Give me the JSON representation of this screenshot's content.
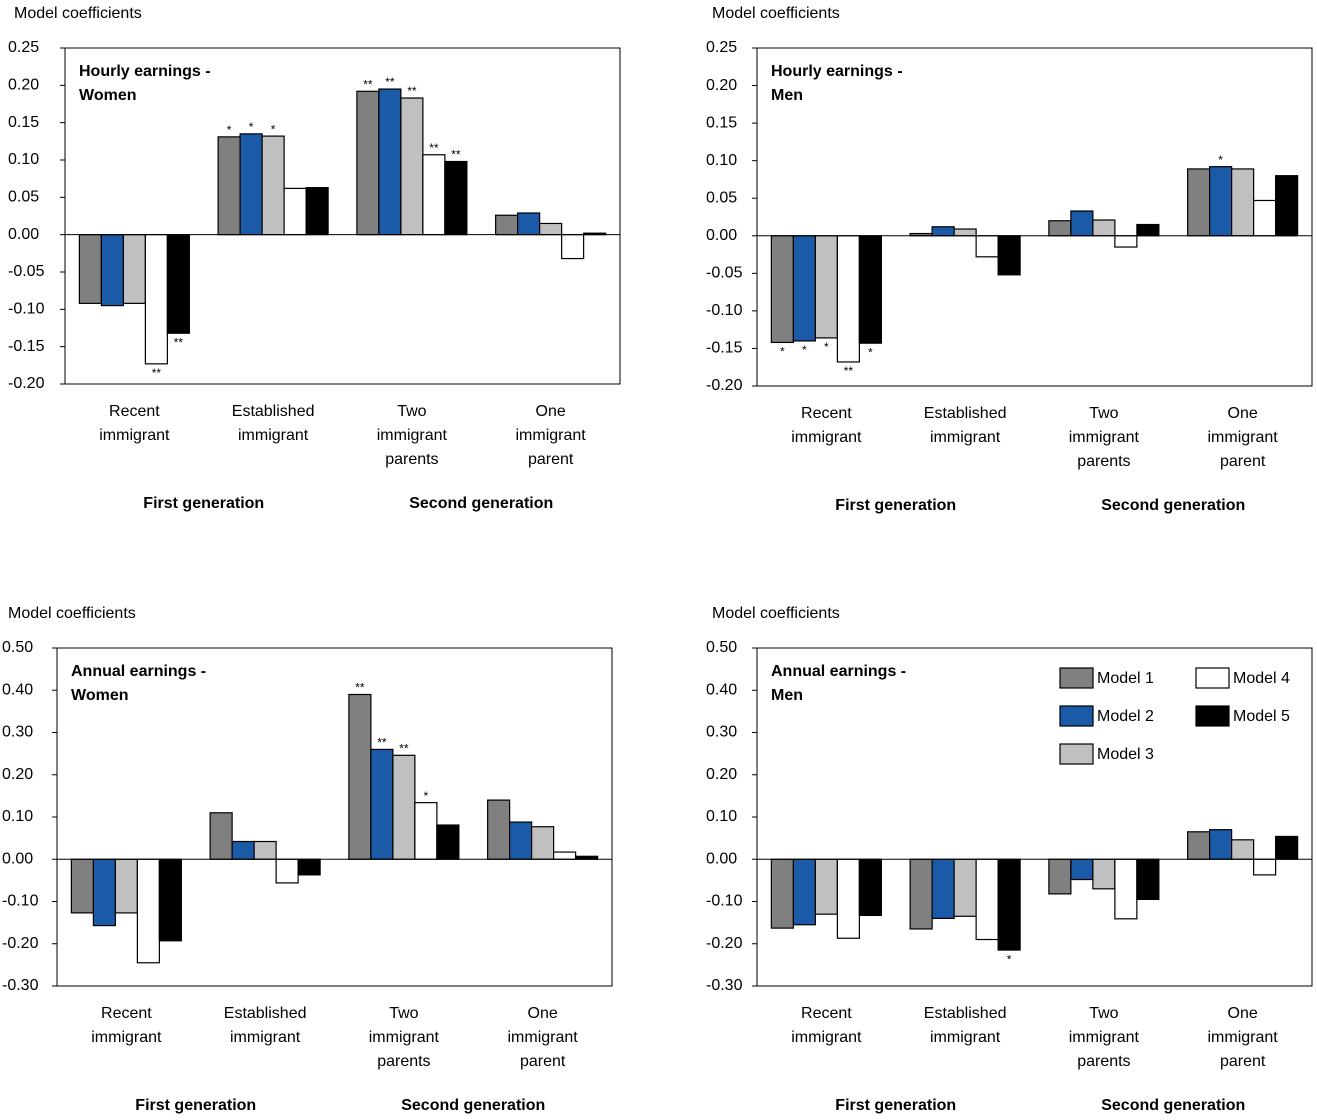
{
  "chart_data": [
    {
      "type": "bar",
      "y_label": "Model coefficients",
      "title": [
        "Hourly earnings -",
        "Women"
      ],
      "categories": [
        [
          "Recent",
          "immigrant"
        ],
        [
          "Established",
          "immigrant"
        ],
        [
          "Two",
          "immigrant",
          "parents"
        ],
        [
          "One",
          "immigrant",
          "parent"
        ]
      ],
      "groups": [
        "First generation",
        "Second generation"
      ],
      "ylim": [
        -0.2,
        0.25
      ],
      "yticks": [
        {
          "value": -0.2,
          "label": "-0.20"
        },
        {
          "value": -0.15,
          "label": "-0.15"
        },
        {
          "value": -0.1,
          "label": "-0.10"
        },
        {
          "value": -0.05,
          "label": "-0.05"
        },
        {
          "value": 0,
          "label": "0.00"
        },
        {
          "value": 0.05,
          "label": "0.05"
        },
        {
          "value": 0.1,
          "label": "0.10"
        },
        {
          "value": 0.15,
          "label": "0.15"
        },
        {
          "value": 0.2,
          "label": "0.20"
        },
        {
          "value": 0.25,
          "label": "0.25"
        }
      ],
      "series": [
        {
          "color": "#808080",
          "values": [
            -0.092,
            0.131,
            0.192,
            0.026
          ],
          "significance": [
            null,
            "*",
            "**",
            null
          ]
        },
        {
          "color": "#1a5aa6",
          "values": [
            -0.095,
            0.135,
            0.195,
            0.029
          ],
          "significance": [
            null,
            "*",
            "**",
            null
          ]
        },
        {
          "color": "#c0c0c0",
          "values": [
            -0.092,
            0.132,
            0.183,
            0.015
          ],
          "significance": [
            null,
            "*",
            "**",
            null
          ]
        },
        {
          "color": "#ffffff",
          "values": [
            -0.173,
            0.062,
            0.107,
            -0.032
          ],
          "significance": [
            "**",
            null,
            "**",
            null
          ]
        },
        {
          "color": "#000000",
          "values": [
            -0.132,
            0.063,
            0.098,
            0.002
          ],
          "significance": [
            "**",
            null,
            "**",
            null
          ]
        }
      ]
    },
    {
      "type": "bar",
      "y_label": "Model coefficients",
      "title": [
        "Hourly earnings -",
        "Men"
      ],
      "categories": [
        [
          "Recent",
          "immigrant"
        ],
        [
          "Established",
          "immigrant"
        ],
        [
          "Two",
          "immigrant",
          "parents"
        ],
        [
          "One",
          "immigrant",
          "parent"
        ]
      ],
      "groups": [
        "First generation",
        "Second generation"
      ],
      "ylim": [
        -0.2,
        0.25
      ],
      "yticks": [
        {
          "value": -0.2,
          "label": "-0.20"
        },
        {
          "value": -0.15,
          "label": "-0.15"
        },
        {
          "value": -0.1,
          "label": "-0.10"
        },
        {
          "value": -0.05,
          "label": "-0.05"
        },
        {
          "value": 0,
          "label": "0.00"
        },
        {
          "value": 0.05,
          "label": "0.05"
        },
        {
          "value": 0.1,
          "label": "0.10"
        },
        {
          "value": 0.15,
          "label": "0.15"
        },
        {
          "value": 0.2,
          "label": "0.20"
        },
        {
          "value": 0.25,
          "label": "0.25"
        }
      ],
      "series": [
        {
          "color": "#808080",
          "values": [
            -0.142,
            0.003,
            0.02,
            0.089
          ],
          "significance": [
            "*",
            null,
            null,
            null
          ]
        },
        {
          "color": "#1a5aa6",
          "values": [
            -0.14,
            0.012,
            0.033,
            0.092
          ],
          "significance": [
            "*",
            null,
            null,
            "*"
          ]
        },
        {
          "color": "#c0c0c0",
          "values": [
            -0.136,
            0.009,
            0.021,
            0.089
          ],
          "significance": [
            "*",
            null,
            null,
            null
          ]
        },
        {
          "color": "#ffffff",
          "values": [
            -0.168,
            -0.028,
            -0.015,
            0.047
          ],
          "significance": [
            "**",
            null,
            null,
            null
          ]
        },
        {
          "color": "#000000",
          "values": [
            -0.143,
            -0.052,
            0.015,
            0.08
          ],
          "significance": [
            "*",
            null,
            null,
            null
          ]
        }
      ]
    },
    {
      "type": "bar",
      "y_label": "Model coefficients",
      "title": [
        "Annual earnings -",
        "Women"
      ],
      "categories": [
        [
          "Recent",
          "immigrant"
        ],
        [
          "Established",
          "immigrant"
        ],
        [
          "Two",
          "immigrant",
          "parents"
        ],
        [
          "One",
          "immigrant",
          "parent"
        ]
      ],
      "groups": [
        "First generation",
        "Second generation"
      ],
      "ylim": [
        -0.3,
        0.5
      ],
      "yticks": [
        {
          "value": -0.3,
          "label": "-0.30"
        },
        {
          "value": -0.2,
          "label": "-0.20"
        },
        {
          "value": -0.1,
          "label": "-0.10"
        },
        {
          "value": 0,
          "label": "0.00"
        },
        {
          "value": 0.1,
          "label": "0.10"
        },
        {
          "value": 0.2,
          "label": "0.20"
        },
        {
          "value": 0.3,
          "label": "0.30"
        },
        {
          "value": 0.4,
          "label": "0.40"
        },
        {
          "value": 0.5,
          "label": "0.50"
        }
      ],
      "series": [
        {
          "color": "#808080",
          "values": [
            -0.127,
            0.11,
            0.39,
            0.14
          ],
          "significance": [
            null,
            null,
            "**",
            null
          ]
        },
        {
          "color": "#1a5aa6",
          "values": [
            -0.157,
            0.042,
            0.26,
            0.088
          ],
          "significance": [
            null,
            null,
            "**",
            null
          ]
        },
        {
          "color": "#c0c0c0",
          "values": [
            -0.127,
            0.042,
            0.246,
            0.077
          ],
          "significance": [
            null,
            null,
            "**",
            null
          ]
        },
        {
          "color": "#ffffff",
          "values": [
            -0.245,
            -0.056,
            0.134,
            0.017
          ],
          "significance": [
            null,
            null,
            "*",
            null
          ]
        },
        {
          "color": "#000000",
          "values": [
            -0.193,
            -0.037,
            0.081,
            0.007
          ],
          "significance": [
            null,
            null,
            null,
            null
          ]
        }
      ]
    },
    {
      "type": "bar",
      "y_label": "Model coefficients",
      "title": [
        "Annual earnings -",
        "Men"
      ],
      "categories": [
        [
          "Recent",
          "immigrant"
        ],
        [
          "Established",
          "immigrant"
        ],
        [
          "Two",
          "immigrant",
          "parents"
        ],
        [
          "One",
          "immigrant",
          "parent"
        ]
      ],
      "groups": [
        "First generation",
        "Second generation"
      ],
      "ylim": [
        -0.3,
        0.5
      ],
      "yticks": [
        {
          "value": -0.3,
          "label": "-0.30"
        },
        {
          "value": -0.2,
          "label": "-0.20"
        },
        {
          "value": -0.1,
          "label": "-0.10"
        },
        {
          "value": 0,
          "label": "0.00"
        },
        {
          "value": 0.1,
          "label": "0.10"
        },
        {
          "value": 0.2,
          "label": "0.20"
        },
        {
          "value": 0.3,
          "label": "0.30"
        },
        {
          "value": 0.4,
          "label": "0.40"
        },
        {
          "value": 0.5,
          "label": "0.50"
        }
      ],
      "legend": "top-right",
      "series": [
        {
          "name": "Model 1",
          "color": "#808080",
          "values": [
            -0.163,
            -0.165,
            -0.082,
            0.065
          ],
          "significance": [
            null,
            null,
            null,
            null
          ]
        },
        {
          "name": "Model 2",
          "color": "#1a5aa6",
          "values": [
            -0.155,
            -0.14,
            -0.048,
            0.07
          ],
          "significance": [
            null,
            null,
            null,
            null
          ]
        },
        {
          "name": "Model 3",
          "color": "#c0c0c0",
          "values": [
            -0.13,
            -0.135,
            -0.07,
            0.046
          ],
          "significance": [
            null,
            null,
            null,
            null
          ]
        },
        {
          "name": "Model 4",
          "color": "#ffffff",
          "values": [
            -0.187,
            -0.19,
            -0.141,
            -0.037
          ],
          "significance": [
            null,
            null,
            null,
            null
          ]
        },
        {
          "name": "Model 5",
          "color": "#000000",
          "values": [
            -0.133,
            -0.215,
            -0.095,
            0.054
          ],
          "significance": [
            null,
            "*",
            null,
            null
          ]
        }
      ]
    }
  ]
}
